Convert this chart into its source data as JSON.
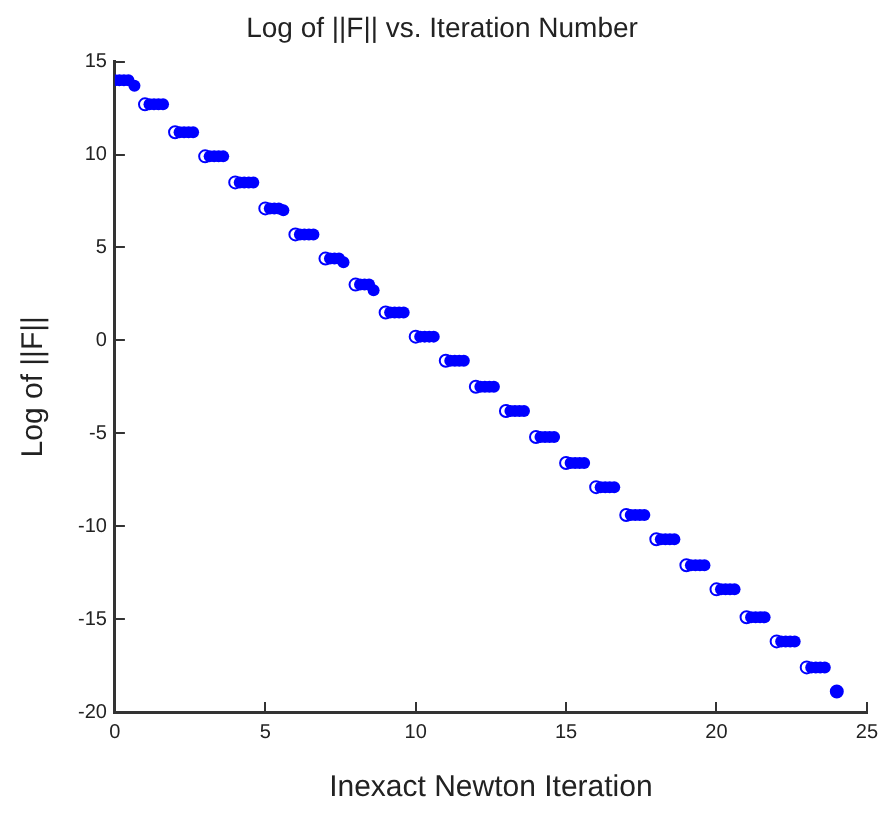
{
  "chart_data": {
    "type": "scatter",
    "title": "Log of ||F|| vs. Iteration Number",
    "xlabel": "Inexact Newton Iteration",
    "ylabel": "Log of ||F||",
    "xlim": [
      0,
      25
    ],
    "xticks": [
      0,
      5,
      10,
      15,
      20,
      25
    ],
    "ylim": [
      -20,
      15
    ],
    "yticks": [
      -20,
      -15,
      -10,
      -5,
      0,
      5,
      10,
      15
    ],
    "grid": false,
    "legend": false,
    "marker": "circle",
    "series": [
      {
        "color": "#0000ff",
        "x": [
          0,
          0.15,
          0.3,
          0.45,
          0.65,
          1.15,
          1.3,
          1.45,
          1.6,
          2.15,
          2.3,
          2.45,
          2.6,
          3.15,
          3.3,
          3.45,
          3.6,
          4.15,
          4.3,
          4.45,
          4.6,
          5.15,
          5.3,
          5.45,
          5.6,
          6.15,
          6.3,
          6.45,
          6.6,
          7.15,
          7.3,
          7.45,
          7.6,
          8.15,
          8.3,
          8.45,
          8.6,
          9.15,
          9.3,
          9.45,
          9.6,
          10.15,
          10.3,
          10.45,
          10.6,
          11.15,
          11.3,
          11.45,
          11.6,
          12.15,
          12.3,
          12.45,
          12.6,
          13.15,
          13.3,
          13.45,
          13.6,
          14.15,
          14.3,
          14.45,
          14.6,
          15.15,
          15.3,
          15.45,
          15.6,
          16.15,
          16.3,
          16.45,
          16.6,
          17.15,
          17.3,
          17.45,
          17.6,
          18.15,
          18.3,
          18.45,
          18.6,
          19.15,
          19.3,
          19.45,
          19.6,
          20.15,
          20.3,
          20.45,
          20.6,
          21.15,
          21.3,
          21.45,
          21.6,
          22.15,
          22.3,
          22.45,
          22.6,
          23.15,
          23.3,
          23.45,
          23.6,
          24
        ],
        "values": [
          14,
          14,
          14,
          14,
          13.7,
          12.7,
          12.7,
          12.7,
          12.7,
          11.2,
          11.2,
          11.2,
          11.2,
          9.9,
          9.9,
          9.9,
          9.9,
          8.5,
          8.5,
          8.5,
          8.5,
          7.1,
          7.1,
          7.1,
          7,
          5.7,
          5.7,
          5.7,
          5.7,
          4.4,
          4.4,
          4.4,
          4.2,
          3,
          3,
          3,
          2.7,
          1.5,
          1.5,
          1.5,
          1.5,
          0.2,
          0.2,
          0.2,
          0.2,
          -1.1,
          -1.1,
          -1.1,
          -1.1,
          -2.5,
          -2.5,
          -2.5,
          -2.5,
          -3.8,
          -3.8,
          -3.8,
          -3.8,
          -5.2,
          -5.2,
          -5.2,
          -5.2,
          -6.6,
          -6.6,
          -6.6,
          -6.6,
          -7.9,
          -7.9,
          -7.9,
          -7.9,
          -9.4,
          -9.4,
          -9.4,
          -9.4,
          -10.7,
          -10.7,
          -10.7,
          -10.7,
          -12.1,
          -12.1,
          -12.1,
          -12.1,
          -13.4,
          -13.4,
          -13.4,
          -13.4,
          -14.9,
          -14.9,
          -14.9,
          -14.9,
          -16.2,
          -16.2,
          -16.2,
          -16.2,
          -17.6,
          -17.6,
          -17.6,
          -17.6,
          -18.9
        ]
      },
      {
        "color": "#0000ff",
        "x": [
          1,
          2,
          3,
          4,
          5,
          6,
          7,
          8,
          9,
          10,
          11,
          12,
          13,
          14,
          15,
          16,
          17,
          18,
          19,
          20,
          21,
          22,
          23,
          24
        ],
        "values": [
          12.7,
          11.2,
          9.9,
          8.5,
          7.1,
          5.7,
          4.4,
          3,
          1.5,
          0.2,
          -1.1,
          -2.5,
          -3.8,
          -5.2,
          -6.6,
          -7.9,
          -9.4,
          -10.7,
          -12.1,
          -13.4,
          -14.9,
          -16.2,
          -17.6,
          -18.9
        ]
      }
    ]
  }
}
